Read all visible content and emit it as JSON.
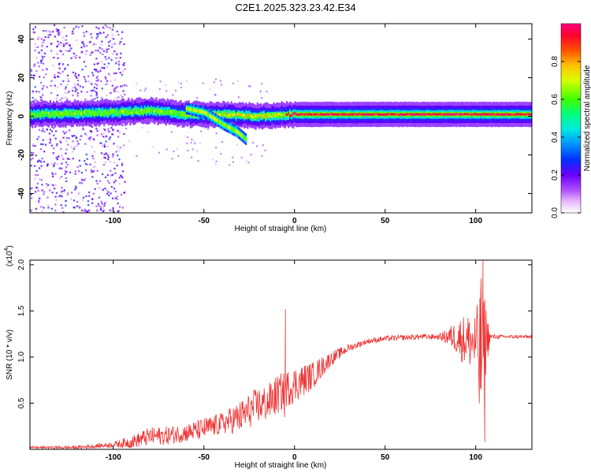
{
  "figure_title": "C2E1.2025.323.23.42.E34",
  "chart_data": [
    {
      "type": "heatmap",
      "xlabel": "Height of straight line (km)",
      "ylabel": "Frequency (Hz)",
      "xlim": [
        -146,
        131
      ],
      "ylim": [
        -50,
        48
      ],
      "xticks": [
        -100,
        -50,
        0,
        50,
        100
      ],
      "yticks": [
        -40,
        -20,
        0,
        20,
        40
      ],
      "colorbar": {
        "label": "Normalized spectral amplitude",
        "range": [
          0,
          1
        ],
        "ticks": [
          0.0,
          0.2,
          0.4,
          0.6,
          0.8
        ],
        "tick_labels": [
          "0.0",
          "0.2",
          "0.4",
          "0.6",
          "0.8"
        ]
      },
      "ridges": [
        {
          "description": "main frequency ridge",
          "points": [
            [
              -146,
              1
            ],
            [
              -100,
              2
            ],
            [
              -80,
              3
            ],
            [
              -60,
              1
            ],
            [
              -40,
              1
            ],
            [
              -20,
              0
            ],
            [
              0,
              1
            ],
            [
              20,
              1
            ],
            [
              40,
              1
            ],
            [
              60,
              1
            ],
            [
              80,
              1
            ],
            [
              100,
              1
            ],
            [
              131,
              1
            ]
          ]
        },
        {
          "description": "descending branch",
          "points": [
            [
              -60,
              4
            ],
            [
              -50,
              2
            ],
            [
              -40,
              -4
            ],
            [
              -32,
              -8
            ],
            [
              -27,
              -12
            ]
          ]
        }
      ]
    },
    {
      "type": "line",
      "xlabel": "Height of straight line (km)",
      "ylabel": "SNR (10 * v/v)",
      "y_multiplier": "(x10",
      "y_multiplier_exp": "4",
      "y_multiplier_close": ")",
      "xlim": [
        -146,
        131
      ],
      "ylim": [
        0,
        2.05
      ],
      "xticks": [
        -100,
        -50,
        0,
        50,
        100
      ],
      "yticks": [
        0.5,
        1.0,
        1.5,
        2.0
      ],
      "ytick_labels": [
        "0.5",
        "1.0",
        "1.5",
        "2.0"
      ],
      "series": [
        {
          "color": "#ee3333",
          "envelope_x": [
            -146,
            -120,
            -100,
            -90,
            -80,
            -70,
            -60,
            -50,
            -40,
            -30,
            -20,
            -15,
            -10,
            -5,
            0,
            10,
            20,
            30,
            40,
            50,
            60,
            70,
            80,
            88,
            92,
            96,
            100,
            103,
            105,
            108,
            115,
            125,
            131
          ],
          "envelope_mean": [
            0.02,
            0.02,
            0.05,
            0.08,
            0.14,
            0.15,
            0.18,
            0.22,
            0.28,
            0.35,
            0.48,
            0.5,
            0.58,
            0.65,
            0.7,
            0.8,
            0.98,
            1.1,
            1.17,
            1.2,
            1.21,
            1.22,
            1.22,
            1.22,
            1.2,
            1.18,
            1.15,
            1.0,
            1.2,
            1.22,
            1.22,
            1.22,
            1.22
          ],
          "envelope_amplitude": [
            0.01,
            0.02,
            0.03,
            0.07,
            0.1,
            0.1,
            0.1,
            0.12,
            0.12,
            0.18,
            0.2,
            0.2,
            0.22,
            0.2,
            0.2,
            0.15,
            0.08,
            0.04,
            0.03,
            0.03,
            0.03,
            0.03,
            0.03,
            0.15,
            0.25,
            0.3,
            0.35,
            0.8,
            0.5,
            0.03,
            0.02,
            0.02,
            0.02
          ],
          "spikes": [
            [
              -5,
              1.52
            ],
            [
              -5.5,
              0.35
            ],
            [
              104,
              2.05
            ],
            [
              105,
              0.08
            ],
            [
              103,
              1.85
            ],
            [
              102,
              0.5
            ]
          ]
        }
      ]
    }
  ]
}
